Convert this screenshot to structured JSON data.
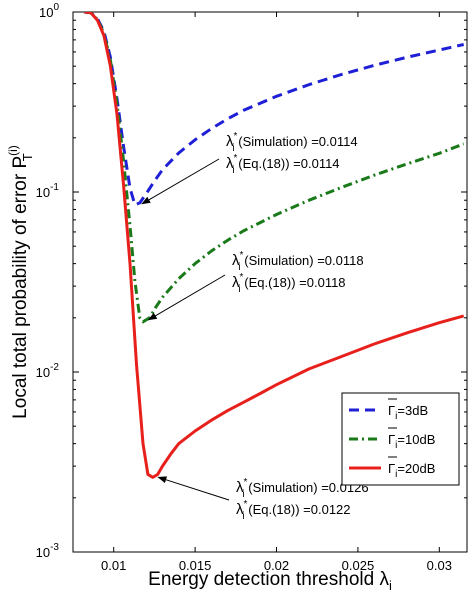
{
  "chart_data": {
    "type": "line",
    "xlabel": "Energy detection threshold λ",
    "xlabel_sub": "i",
    "ylabel": "Local total probability of error P",
    "ylabel_sub": "T",
    "ylabel_sup": "(i)",
    "xlim": [
      0.0075,
      0.0317
    ],
    "ylim": [
      0.001,
      1
    ],
    "yscale": "log",
    "grid": false,
    "legend_position": "lower-right",
    "x_ticks": [
      {
        "value": 0.01,
        "label": "0.01"
      },
      {
        "value": 0.015,
        "label": "0.015"
      },
      {
        "value": 0.02,
        "label": "0.02"
      },
      {
        "value": 0.025,
        "label": "0.025"
      },
      {
        "value": 0.03,
        "label": "0.03"
      }
    ],
    "y_ticks": [
      {
        "value": 0.001,
        "label": "10",
        "exp": "-3"
      },
      {
        "value": 0.01,
        "label": "10",
        "exp": "-2"
      },
      {
        "value": 0.1,
        "label": "10",
        "exp": "-1"
      },
      {
        "value": 1,
        "label": "10",
        "exp": "0"
      }
    ],
    "series": [
      {
        "name": "Γi=3dB",
        "legend_main": "Γ",
        "legend_sub": "i",
        "legend_value": "=3dB",
        "color": "#1f1fd6",
        "dash": "10,6",
        "x": [
          0.0082,
          0.0086,
          0.009,
          0.0094,
          0.0098,
          0.0102,
          0.0106,
          0.011,
          0.0113,
          0.0116,
          0.012,
          0.0125,
          0.013,
          0.014,
          0.015,
          0.016,
          0.017,
          0.018,
          0.02,
          0.022,
          0.024,
          0.026,
          0.028,
          0.03,
          0.0315
        ],
        "y": [
          1.0,
          0.99,
          0.92,
          0.78,
          0.56,
          0.33,
          0.18,
          0.105,
          0.085,
          0.087,
          0.098,
          0.115,
          0.133,
          0.165,
          0.195,
          0.225,
          0.255,
          0.285,
          0.34,
          0.395,
          0.45,
          0.505,
          0.56,
          0.615,
          0.66
        ]
      },
      {
        "name": "Γi=10dB",
        "legend_main": "Γ",
        "legend_sub": "i",
        "legend_value": "=10dB",
        "color": "#1a7a1a",
        "dash": "9,4,2,4",
        "x": [
          0.0082,
          0.0086,
          0.009,
          0.0094,
          0.0098,
          0.0102,
          0.0106,
          0.011,
          0.0113,
          0.0116,
          0.0118,
          0.0122,
          0.0126,
          0.013,
          0.014,
          0.015,
          0.016,
          0.017,
          0.018,
          0.02,
          0.022,
          0.024,
          0.026,
          0.028,
          0.03,
          0.0315
        ],
        "y": [
          1.0,
          0.99,
          0.91,
          0.76,
          0.54,
          0.31,
          0.15,
          0.065,
          0.032,
          0.02,
          0.019,
          0.02,
          0.023,
          0.026,
          0.033,
          0.04,
          0.047,
          0.054,
          0.061,
          0.075,
          0.09,
          0.106,
          0.124,
          0.143,
          0.164,
          0.185
        ]
      },
      {
        "name": "Γi=20dB",
        "legend_main": "Γ",
        "legend_sub": "i",
        "legend_value": "=20dB",
        "color": "#e8201c",
        "dash": "",
        "x": [
          0.0082,
          0.0086,
          0.009,
          0.0094,
          0.0098,
          0.0102,
          0.0106,
          0.011,
          0.0114,
          0.0118,
          0.0121,
          0.0124,
          0.0127,
          0.013,
          0.0135,
          0.014,
          0.015,
          0.016,
          0.017,
          0.018,
          0.019,
          0.02,
          0.022,
          0.024,
          0.026,
          0.028,
          0.03,
          0.0315
        ],
        "y": [
          1.0,
          0.99,
          0.9,
          0.74,
          0.5,
          0.27,
          0.11,
          0.04,
          0.011,
          0.004,
          0.0027,
          0.0026,
          0.0027,
          0.003,
          0.0035,
          0.004,
          0.0047,
          0.0054,
          0.0061,
          0.0068,
          0.0076,
          0.0085,
          0.0104,
          0.0122,
          0.0143,
          0.0165,
          0.0188,
          0.0205
        ]
      }
    ],
    "annotations": [
      {
        "line1": "(Simulation) =0.0114",
        "line2": "(Eq.(18)) =0.0114",
        "symbol": "λ",
        "sub": "i",
        "sup": "*",
        "target": [
          0.0115,
          0.086
        ]
      },
      {
        "line1": "(Simulation) =0.0118",
        "line2": "(Eq.(18)) =0.0118",
        "symbol": "λ",
        "sub": "i",
        "sup": "*",
        "target": [
          0.0119,
          0.0195
        ]
      },
      {
        "line1": "(Simulation) =0.0126",
        "line2": "(Eq.(18)) =0.0122",
        "symbol": "λ",
        "sub": "i",
        "sup": "*",
        "target": [
          0.0125,
          0.0026
        ]
      }
    ]
  }
}
